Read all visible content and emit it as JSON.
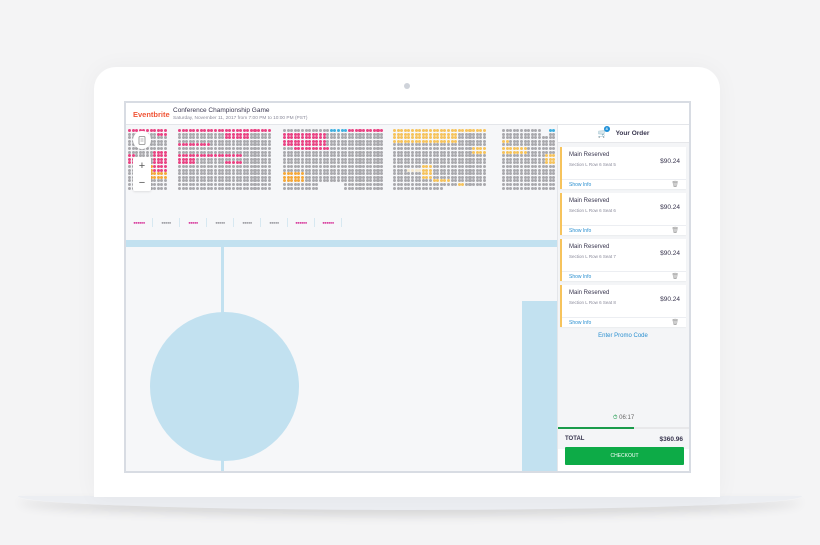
{
  "header": {
    "brand": "Eventbrite",
    "event_title": "Conference Championship Game",
    "event_date": "Saturday, November 11, 2017 from 7:00 PM to 10:00 PM (PST)"
  },
  "map": {
    "zoom_in": "+",
    "zoom_out": "−",
    "ticket_icon": "ticket-icon",
    "colors": {
      "available_pink": "#e94383",
      "available_orange": "#f5a83a",
      "available_yellow": "#f6c35c",
      "available_blue": "#3fb0e0",
      "unavailable": "#a9a9ad",
      "field": "#c2e1f0"
    },
    "mini_sections": [
      "●●●●●●",
      "●●●●●",
      "●●●●●",
      "●●●●●",
      "●●●●●",
      "●●●●●",
      "●●●●●●",
      "●●●●●●"
    ]
  },
  "order": {
    "title": "Your Order",
    "cart_count": "4",
    "tickets": [
      {
        "name": "Main Reserved",
        "location": "Section L Row 6 Seat 5",
        "price": "$90.24",
        "info": "Show Info"
      },
      {
        "name": "Main Reserved",
        "location": "Section L Row 6 Seat 6",
        "price": "$90.24",
        "info": "Show Info"
      },
      {
        "name": "Main Reserved",
        "location": "Section L Row 6 Seat 7",
        "price": "$90.24",
        "info": "Show Info"
      },
      {
        "name": "Main Reserved",
        "location": "Section L Row 6 Seat 8",
        "price": "$90.24",
        "info": "Show Info"
      }
    ],
    "promo": "Enter Promo Code",
    "timer": "06:17",
    "total_label": "TOTAL",
    "total_value": "$360.96",
    "checkout": "CHECKOUT"
  }
}
